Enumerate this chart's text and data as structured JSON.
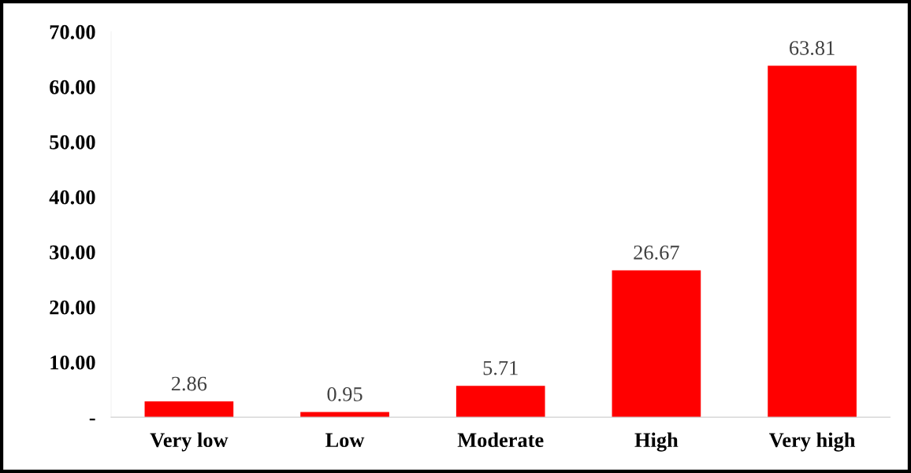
{
  "chart_data": {
    "type": "bar",
    "categories": [
      "Very low",
      "Low",
      "Moderate",
      "High",
      "Very high"
    ],
    "values": [
      2.86,
      0.95,
      5.71,
      26.67,
      63.81
    ],
    "color": "#ff0000",
    "ylim": [
      0,
      70
    ],
    "yticks": [
      {
        "value": 0,
        "label": "-"
      },
      {
        "value": 10,
        "label": "10.00"
      },
      {
        "value": 20,
        "label": "20.00"
      },
      {
        "value": 30,
        "label": "30.00"
      },
      {
        "value": 40,
        "label": "40.00"
      },
      {
        "value": 50,
        "label": "50.00"
      },
      {
        "value": 60,
        "label": "60.00"
      },
      {
        "value": 70,
        "label": "70.00"
      }
    ],
    "grid": false,
    "data_labels": true
  }
}
